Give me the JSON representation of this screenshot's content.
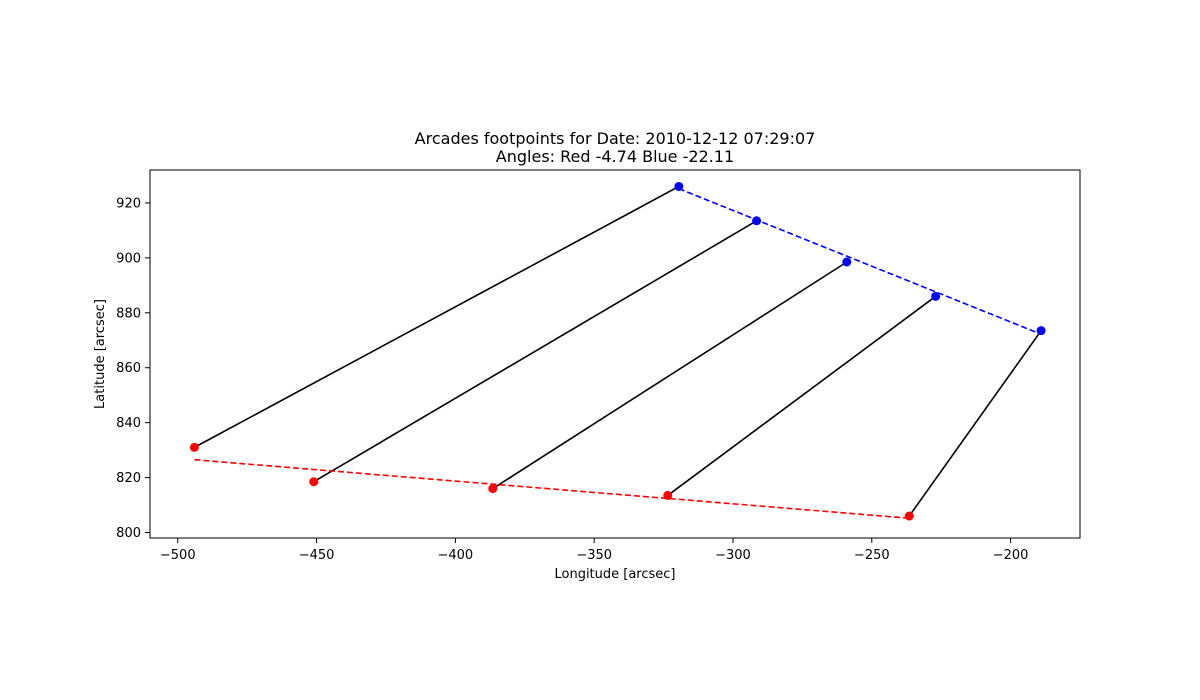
{
  "chart_data": {
    "type": "scatter",
    "title": "Arcades footpoints for Date: 2010-12-12 07:29:07",
    "subtitle": "Angles: Red -4.74 Blue -22.11",
    "xlabel": "Longitude [arcsec]",
    "ylabel": "Latitude [arcsec]",
    "xlim": [
      -510,
      -175
    ],
    "ylim": [
      798,
      932
    ],
    "xticks": [
      -500,
      -450,
      -400,
      -350,
      -300,
      -250,
      -200
    ],
    "yticks": [
      800,
      820,
      840,
      860,
      880,
      900,
      920
    ],
    "xtick_labels": [
      "−500",
      "−450",
      "−400",
      "−350",
      "−300",
      "−250",
      "−200"
    ],
    "ytick_labels": [
      "800",
      "820",
      "840",
      "860",
      "880",
      "900",
      "920"
    ],
    "grid": false,
    "colors": {
      "red": "#ff0000",
      "blue": "#0000ff",
      "connector": "#000000"
    },
    "red_points": [
      {
        "x": -494,
        "y": 831
      },
      {
        "x": -451,
        "y": 818.5
      },
      {
        "x": -386.5,
        "y": 816
      },
      {
        "x": -323.5,
        "y": 813.5
      },
      {
        "x": -236.5,
        "y": 806
      }
    ],
    "blue_points": [
      {
        "x": -319.5,
        "y": 926
      },
      {
        "x": -291.5,
        "y": 913.5
      },
      {
        "x": -259,
        "y": 898.5
      },
      {
        "x": -227,
        "y": 886
      },
      {
        "x": -189,
        "y": 873.5
      }
    ],
    "red_fit_line": [
      {
        "x": -494,
        "y": 826.5
      },
      {
        "x": -236.5,
        "y": 805.2
      }
    ],
    "blue_fit_line": [
      {
        "x": -319.5,
        "y": 925.2
      },
      {
        "x": -189,
        "y": 872.2
      }
    ]
  }
}
